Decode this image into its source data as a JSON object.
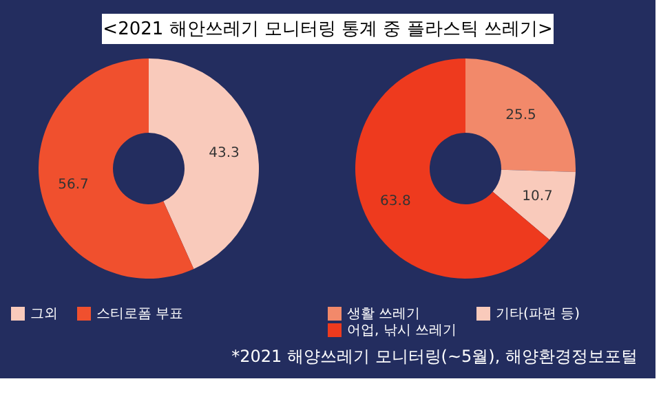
{
  "chart_data": [
    {
      "type": "donut",
      "title": "<2021 해안쓰레기 모니터링 통계 중 플라스틱 쓰레기>",
      "categories": [
        "그외",
        "스티로폼 부표"
      ],
      "values": [
        43.3,
        56.7
      ],
      "colors": [
        "#f9cabb",
        "#f0502e"
      ],
      "data_labels": true,
      "legend": "bottom"
    },
    {
      "type": "donut",
      "categories": [
        "생활 쓰레기",
        "기타(파편 등)",
        "어업, 낚시 쓰레기"
      ],
      "values": [
        25.5,
        10.7,
        63.8
      ],
      "colors": [
        "#f2896a",
        "#f9cabb",
        "#ee3a1e"
      ],
      "data_labels": true,
      "legend": "bottom",
      "annotations": [
        "*2021 해양쓰레기 모니터링(~5월), 해양환경정보포털"
      ]
    }
  ]
}
